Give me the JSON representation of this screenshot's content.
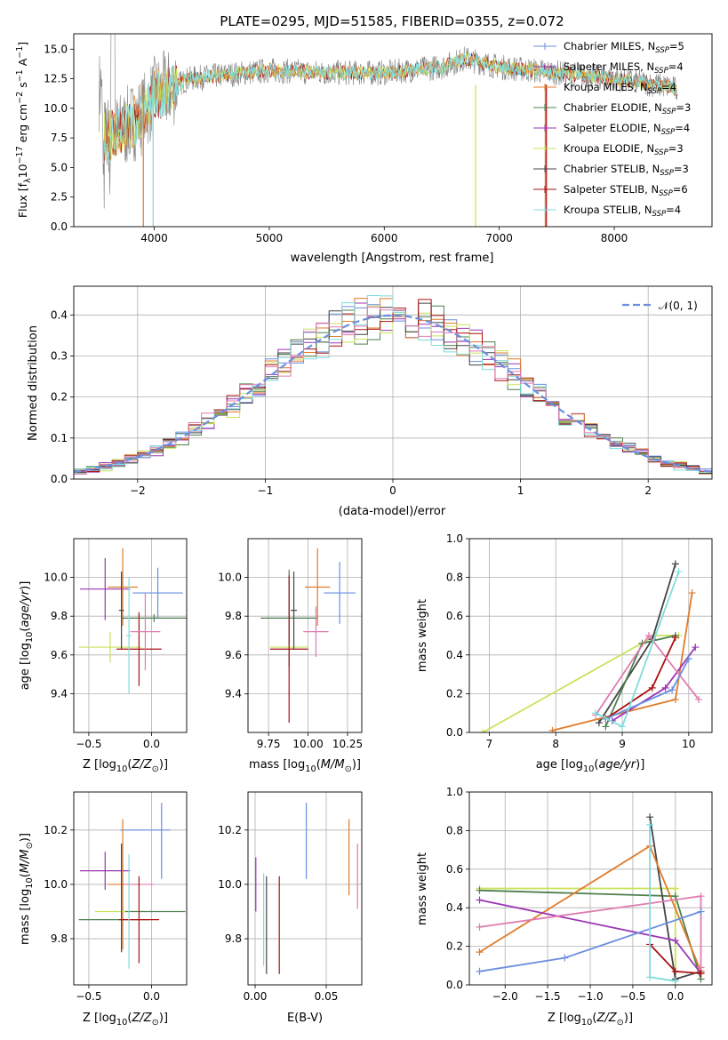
{
  "title": "PLATE=0295, MJD=51585, FIBERID=0355, z=0.072",
  "colors": {
    "chabrier_miles": "#6a8fe0",
    "salpeter_miles": "#9b35b5",
    "kroupa_miles": "#e07b2a",
    "chabrier_elodie": "#4f7f4f",
    "salpeter_elodie": "#9b35b5",
    "kroupa_elodie": "#c8e35a",
    "chabrier_stelib": "#444444",
    "salpeter_stelib": "#aa1111",
    "kroupa_stelib": "#7fdcdc",
    "pink": "#e07bb0",
    "gauss": "#6a8fe0",
    "data": "#808080"
  },
  "chart_data": [
    {
      "id": "spectrum",
      "type": "line",
      "xlabel": "wavelength [Angstrom, rest frame]",
      "ylabel": "Flux [f_λ 10^-17 erg cm^-2 s^-1 A^-1]",
      "xlim": [
        3300,
        8850
      ],
      "ylim": [
        0,
        16.3
      ],
      "xticks": [
        4000,
        5000,
        6000,
        7000,
        8000
      ],
      "yticks": [
        0.0,
        2.5,
        5.0,
        7.5,
        10.0,
        12.5,
        15.0
      ],
      "legend": {
        "placement": "top-right",
        "entries": [
          {
            "label": "Chabrier MILES, N_SSP=5",
            "color": "#6a8fe0"
          },
          {
            "label": "Salpeter MILES, N_SSP=4",
            "color": "#9b35b5"
          },
          {
            "label": "Kroupa MILES, N_SSP=4",
            "color": "#e07b2a"
          },
          {
            "label": "Chabrier ELODIE, N_SSP=3",
            "color": "#4f7f4f"
          },
          {
            "label": "Salpeter ELODIE, N_SSP=4",
            "color": "#9b35b5"
          },
          {
            "label": "Kroupa ELODIE, N_SSP=3",
            "color": "#c8e35a"
          },
          {
            "label": "Chabrier STELIB, N_SSP=3",
            "color": "#444444"
          },
          {
            "label": "Salpeter STELIB, N_SSP=6",
            "color": "#aa1111"
          },
          {
            "label": "Kroupa STELIB, N_SSP=4",
            "color": "#7fdcdc"
          }
        ]
      },
      "continuum": [
        [
          3550,
          7.5
        ],
        [
          3700,
          8.0
        ],
        [
          3900,
          9.5
        ],
        [
          4000,
          11.0
        ],
        [
          4300,
          12.5
        ],
        [
          4600,
          12.8
        ],
        [
          5000,
          13.2
        ],
        [
          5500,
          13.0
        ],
        [
          6000,
          13.0
        ],
        [
          6500,
          13.5
        ],
        [
          6700,
          14.2
        ],
        [
          7000,
          13.5
        ],
        [
          7500,
          13.0
        ],
        [
          8000,
          12.5
        ],
        [
          8500,
          11.8
        ],
        [
          8550,
          11.5
        ]
      ]
    },
    {
      "id": "residuals",
      "type": "line",
      "xlabel": "(data-model)/error",
      "ylabel": "Normed distribution",
      "xlim": [
        -2.5,
        2.5
      ],
      "ylim": [
        0,
        0.47
      ],
      "xticks": [
        -2,
        -1,
        0,
        1,
        2
      ],
      "yticks": [
        0.0,
        0.1,
        0.2,
        0.3,
        0.4
      ],
      "grid": true,
      "legend": {
        "placement": "top-right",
        "entries": [
          {
            "label": "𝒩(0, 1)",
            "style": "dashed"
          }
        ]
      }
    },
    {
      "id": "age_vs_Z",
      "type": "scatter",
      "xlabel": "Z [log10(Z/Z☉)]",
      "ylabel": "age [log10(age/yr)]",
      "xlim": [
        -0.62,
        0.28
      ],
      "ylim": [
        9.2,
        10.2
      ],
      "xticks": [
        -0.5,
        0.0
      ],
      "xticklabels": [
        "−0.5",
        "0.0"
      ],
      "yticks": [
        9.4,
        9.6,
        9.8,
        10.0
      ],
      "yticklabels": [
        "9.4",
        "9.6",
        "9.8",
        "10.0"
      ],
      "grid": true,
      "points": [
        {
          "x": 0.05,
          "y": 9.92,
          "xerr": 0.2,
          "yerr": 0.13,
          "color": "#6a8fe0"
        },
        {
          "x": -0.37,
          "y": 9.94,
          "xerr": 0.2,
          "yerr": 0.16,
          "color": "#9b35b5"
        },
        {
          "x": -0.23,
          "y": 9.95,
          "xerr": 0.12,
          "yerr": 0.2,
          "color": "#e07b2a"
        },
        {
          "x": 0.02,
          "y": 9.79,
          "xerr": 0.26,
          "yerr": 0.02,
          "color": "#4f7f4f"
        },
        {
          "x": -0.33,
          "y": 9.64,
          "xerr": 0.25,
          "yerr": 0.08,
          "color": "#c8e35a"
        },
        {
          "x": -0.24,
          "y": 9.83,
          "xerr": 0.02,
          "yerr": 0.2,
          "color": "#444444"
        },
        {
          "x": -0.1,
          "y": 9.63,
          "xerr": 0.18,
          "yerr": 0.19,
          "color": "#aa1111"
        },
        {
          "x": -0.18,
          "y": 9.7,
          "xerr": 0.02,
          "yerr": 0.3,
          "color": "#7fdcdc"
        },
        {
          "x": -0.05,
          "y": 9.72,
          "xerr": 0.12,
          "yerr": 0.2,
          "color": "#e07bb0"
        }
      ]
    },
    {
      "id": "age_vs_mass",
      "type": "scatter",
      "xlabel": "mass [log10(M/M☉)]",
      "ylabel": "",
      "xlim": [
        9.62,
        10.34
      ],
      "ylim": [
        9.2,
        10.2
      ],
      "xticks": [
        9.75,
        10.0,
        10.25
      ],
      "xticklabels": [
        "9.75",
        "10.00",
        "10.25"
      ],
      "yticks": [
        9.4,
        9.6,
        9.8,
        10.0
      ],
      "yticklabels": [
        "9.4",
        "9.6",
        "9.8",
        "10.0"
      ],
      "grid": true,
      "points": [
        {
          "x": 10.2,
          "y": 9.92,
          "xerr": 0.1,
          "yerr": 0.16,
          "color": "#6a8fe0"
        },
        {
          "x": 10.06,
          "y": 9.95,
          "xerr": 0.08,
          "yerr": 0.2,
          "color": "#e07b2a"
        },
        {
          "x": 9.88,
          "y": 9.79,
          "xerr": 0.18,
          "yerr": 0.25,
          "color": "#4f7f4f"
        },
        {
          "x": 9.88,
          "y": 9.64,
          "xerr": 0.12,
          "yerr": 0.02,
          "color": "#c8e35a"
        },
        {
          "x": 9.88,
          "y": 9.63,
          "xerr": 0.12,
          "yerr": 0.38,
          "color": "#aa1111"
        },
        {
          "x": 9.91,
          "y": 9.83,
          "xerr": 0.02,
          "yerr": 0.2,
          "color": "#444444"
        },
        {
          "x": 10.05,
          "y": 9.72,
          "xerr": 0.08,
          "yerr": 0.13,
          "color": "#e07bb0"
        }
      ]
    },
    {
      "id": "massweight_vs_age",
      "type": "line",
      "xlabel": "age [log10(age/yr)]",
      "ylabel": "mass weight",
      "xlim": [
        6.7,
        10.35
      ],
      "ylim": [
        0,
        1.0
      ],
      "xticks": [
        7,
        8,
        9,
        10
      ],
      "yticks": [
        0.0,
        0.2,
        0.4,
        0.6,
        0.8,
        1.0
      ],
      "yticklabels": [
        "0.0",
        "0.2",
        "0.4",
        "0.6",
        "0.8",
        "1.0"
      ],
      "grid": true,
      "series": [
        {
          "color": "#c8e35a",
          "x": [
            6.9,
            9.5,
            9.85
          ],
          "y": [
            0.0,
            0.5,
            0.5
          ]
        },
        {
          "color": "#444444",
          "x": [
            8.65,
            9.45,
            9.8
          ],
          "y": [
            0.05,
            0.48,
            0.87
          ]
        },
        {
          "color": "#4f7f4f",
          "x": [
            8.75,
            9.3,
            9.8
          ],
          "y": [
            0.03,
            0.46,
            0.5
          ]
        },
        {
          "color": "#e07b2a",
          "x": [
            7.95,
            9.8,
            10.05
          ],
          "y": [
            0.01,
            0.17,
            0.72
          ]
        },
        {
          "color": "#aa1111",
          "x": [
            8.75,
            9.45,
            9.8
          ],
          "y": [
            0.07,
            0.23,
            0.49
          ]
        },
        {
          "color": "#9b35b5",
          "x": [
            8.85,
            9.65,
            10.1
          ],
          "y": [
            0.06,
            0.23,
            0.44
          ]
        },
        {
          "color": "#e07bb0",
          "x": [
            8.6,
            9.4,
            10.15
          ],
          "y": [
            0.09,
            0.5,
            0.17
          ]
        },
        {
          "color": "#6a8fe0",
          "x": [
            8.75,
            9.75,
            10.0
          ],
          "y": [
            0.07,
            0.22,
            0.38
          ]
        },
        {
          "color": "#7fdcdc",
          "x": [
            8.6,
            9.0,
            9.85
          ],
          "y": [
            0.1,
            0.03,
            0.83
          ]
        }
      ]
    },
    {
      "id": "mass_vs_Z",
      "type": "scatter",
      "xlabel": "Z [log10(Z/Z☉)]",
      "ylabel": "mass [log10(M/M☉)]",
      "xlim": [
        -0.62,
        0.28
      ],
      "ylim": [
        9.63,
        10.34
      ],
      "xticks": [
        -0.5,
        0.0
      ],
      "xticklabels": [
        "−0.5",
        "0.0"
      ],
      "yticks": [
        9.8,
        10.0,
        10.2
      ],
      "yticklabels": [
        "9.8",
        "10.0",
        "10.2"
      ],
      "grid": true,
      "points": [
        {
          "x": -0.05,
          "y": 10.2,
          "xerr": 0.2,
          "yerr": 0.0,
          "color": "#6a8fe0"
        },
        {
          "x": 0.08,
          "y": 10.16,
          "xerr": 0.0,
          "yerr": 0.14,
          "color": "#6a8fe0"
        },
        {
          "x": -0.37,
          "y": 10.05,
          "xerr": 0.2,
          "yerr": 0.07,
          "color": "#9b35b5"
        },
        {
          "x": -0.23,
          "y": 10.0,
          "xerr": 0.12,
          "yerr": 0.24,
          "color": "#e07b2a"
        },
        {
          "x": -0.1,
          "y": 10.0,
          "xerr": 0.12,
          "yerr": 0.0,
          "color": "#e07bb0"
        },
        {
          "x": 0.02,
          "y": 9.9,
          "xerr": 0.25,
          "yerr": 0.0,
          "color": "#4f7f4f"
        },
        {
          "x": -0.33,
          "y": 9.9,
          "xerr": 0.12,
          "yerr": 0.0,
          "color": "#c8e35a"
        },
        {
          "x": -0.24,
          "y": 9.95,
          "xerr": 0.0,
          "yerr": 0.2,
          "color": "#444444"
        },
        {
          "x": -0.3,
          "y": 9.87,
          "xerr": 0.28,
          "yerr": 0.0,
          "color": "#4f7f4f"
        },
        {
          "x": -0.1,
          "y": 9.87,
          "xerr": 0.16,
          "yerr": 0.16,
          "color": "#aa1111"
        },
        {
          "x": -0.18,
          "y": 9.9,
          "xerr": 0.0,
          "yerr": 0.21,
          "color": "#7fdcdc"
        }
      ]
    },
    {
      "id": "mass_vs_ebv",
      "type": "scatter",
      "xlabel": "E(B-V)",
      "ylabel": "",
      "xlim": [
        -0.005,
        0.075
      ],
      "ylim": [
        9.63,
        10.34
      ],
      "xticks": [
        0.0,
        0.05
      ],
      "xticklabels": [
        "0.00",
        "0.05"
      ],
      "yticks": [
        9.8,
        10.0,
        10.2
      ],
      "yticklabels": [
        "9.8",
        "10.0",
        "10.2"
      ],
      "grid": true,
      "points": [
        {
          "x": 0.036,
          "y": 10.16,
          "xerr": 0.0,
          "yerr": 0.14,
          "color": "#6a8fe0"
        },
        {
          "x": 0.066,
          "y": 10.1,
          "xerr": 0.0,
          "yerr": 0.14,
          "color": "#e07b2a"
        },
        {
          "x": 0.072,
          "y": 10.03,
          "xerr": 0.0,
          "yerr": 0.12,
          "color": "#e07bb0"
        },
        {
          "x": 0.0005,
          "y": 10.0,
          "xerr": 0.0,
          "yerr": 0.1,
          "color": "#9b35b5"
        },
        {
          "x": 0.006,
          "y": 9.87,
          "xerr": 0.0,
          "yerr": 0.17,
          "color": "#7fdcdc"
        },
        {
          "x": 0.008,
          "y": 9.85,
          "xerr": 0.0,
          "yerr": 0.18,
          "color": "#444444"
        },
        {
          "x": 0.017,
          "y": 9.85,
          "xerr": 0.0,
          "yerr": 0.18,
          "color": "#aa1111"
        }
      ]
    },
    {
      "id": "massweight_vs_Z",
      "type": "line",
      "xlabel": "Z [log10(Z/Z☉)]",
      "ylabel": "mass weight",
      "xlim": [
        -2.42,
        0.43
      ],
      "ylim": [
        0,
        1.0
      ],
      "xticks": [
        -2.0,
        -1.5,
        -1.0,
        -0.5,
        0.0
      ],
      "xticklabels": [
        "−2.0",
        "−1.5",
        "−1.0",
        "−0.5",
        "0.0"
      ],
      "yticks": [
        0.0,
        0.2,
        0.4,
        0.6,
        0.8,
        1.0
      ],
      "yticklabels": [
        "0.0",
        "0.2",
        "0.4",
        "0.6",
        "0.8",
        "1.0"
      ],
      "grid": true,
      "series": [
        {
          "color": "#c8e35a",
          "x": [
            -2.3,
            0.0,
            0.0
          ],
          "y": [
            0.5,
            0.5,
            0.0
          ]
        },
        {
          "color": "#4f7f4f",
          "x": [
            -2.3,
            0.0,
            0.3
          ],
          "y": [
            0.49,
            0.46,
            0.03
          ]
        },
        {
          "color": "#444444",
          "x": [
            -0.3,
            0.0,
            0.3
          ],
          "y": [
            0.87,
            0.03,
            0.07
          ]
        },
        {
          "color": "#e07b2a",
          "x": [
            -2.3,
            -0.3,
            0.3
          ],
          "y": [
            0.17,
            0.72,
            0.07
          ]
        },
        {
          "color": "#9b35b5",
          "x": [
            -2.3,
            0.0,
            0.3
          ],
          "y": [
            0.44,
            0.23,
            0.06
          ]
        },
        {
          "color": "#e07bb0",
          "x": [
            -2.3,
            0.3,
            0.3
          ],
          "y": [
            0.3,
            0.46,
            0.09
          ]
        },
        {
          "color": "#6a8fe0",
          "x": [
            -2.3,
            -1.3,
            0.3
          ],
          "y": [
            0.07,
            0.14,
            0.38
          ]
        },
        {
          "color": "#aa1111",
          "x": [
            -0.3,
            0.0,
            0.3
          ],
          "y": [
            0.21,
            0.07,
            0.06
          ]
        },
        {
          "color": "#7fdcdc",
          "x": [
            -0.3,
            -0.3,
            0.0
          ],
          "y": [
            0.83,
            0.04,
            0.02
          ]
        }
      ]
    }
  ]
}
